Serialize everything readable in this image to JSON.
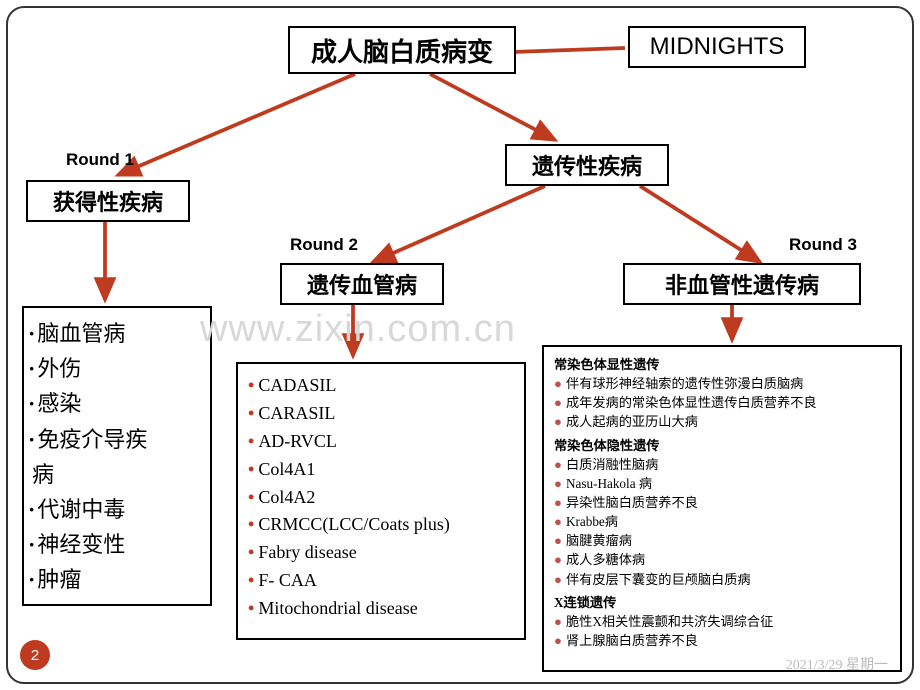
{
  "root": {
    "title": "成人脑白质病变",
    "mnemonic": "MIDNIGHTS"
  },
  "branches": {
    "acquired": {
      "round_label": "Round 1",
      "title": "获得性疾病"
    },
    "hereditary": {
      "title": "遗传性疾病"
    },
    "vascular": {
      "round_label": "Round 2",
      "title": "遗传血管病"
    },
    "nonvascular": {
      "round_label": "Round 3",
      "title": "非血管性遗传病"
    }
  },
  "lists": {
    "acquired": [
      "脑血管病",
      "外伤",
      "感染",
      "免疫介导疾"
    ],
    "acquired_tail": "病",
    "acquired_more": [
      "代谢中毒",
      "神经变性",
      "肿瘤"
    ],
    "vascular": [
      "CADASIL",
      "CARASIL",
      "AD-RVCL",
      "Col4A1",
      "Col4A2",
      "CRMCC(LCC/Coats plus)",
      "Fabry disease",
      "F- CAA",
      "Mitochondrial disease"
    ],
    "nonvascular": {
      "sect1": "常染色体显性遗传",
      "s1items": [
        "伴有球形神经轴索的遗传性弥漫白质脑病",
        "成年发病的常染色体显性遗传白质营养不良",
        "成人起病的亚历山大病"
      ],
      "sect2": "常染色体隐性遗传",
      "s2items": [
        "白质消融性脑病",
        "Nasu-Hakola 病",
        "异染性脑白质营养不良",
        "Krabbe病",
        "脑腱黄瘤病",
        "成人多糖体病",
        "伴有皮层下囊变的巨颅脑白质病"
      ],
      "sect3": "X连锁遗传",
      "s3items": [
        "脆性X相关性震颤和共济失调综合征",
        "肾上腺脑白质营养不良"
      ]
    }
  },
  "watermark": "www.zixin.com.cn",
  "page_number": "2",
  "footer_date": "2021/3/29 星期一",
  "style": {
    "arrow_color": "#bf3b1f",
    "arrow_width": 3.8,
    "bullet_color_red": "#c0504d",
    "font_root": 26,
    "font_node": 22,
    "font_list1": 22,
    "font_list2": 18,
    "font_list3": 13.2,
    "font_label": 17,
    "watermark_fontsize": 38,
    "list3_red_count": 14
  }
}
